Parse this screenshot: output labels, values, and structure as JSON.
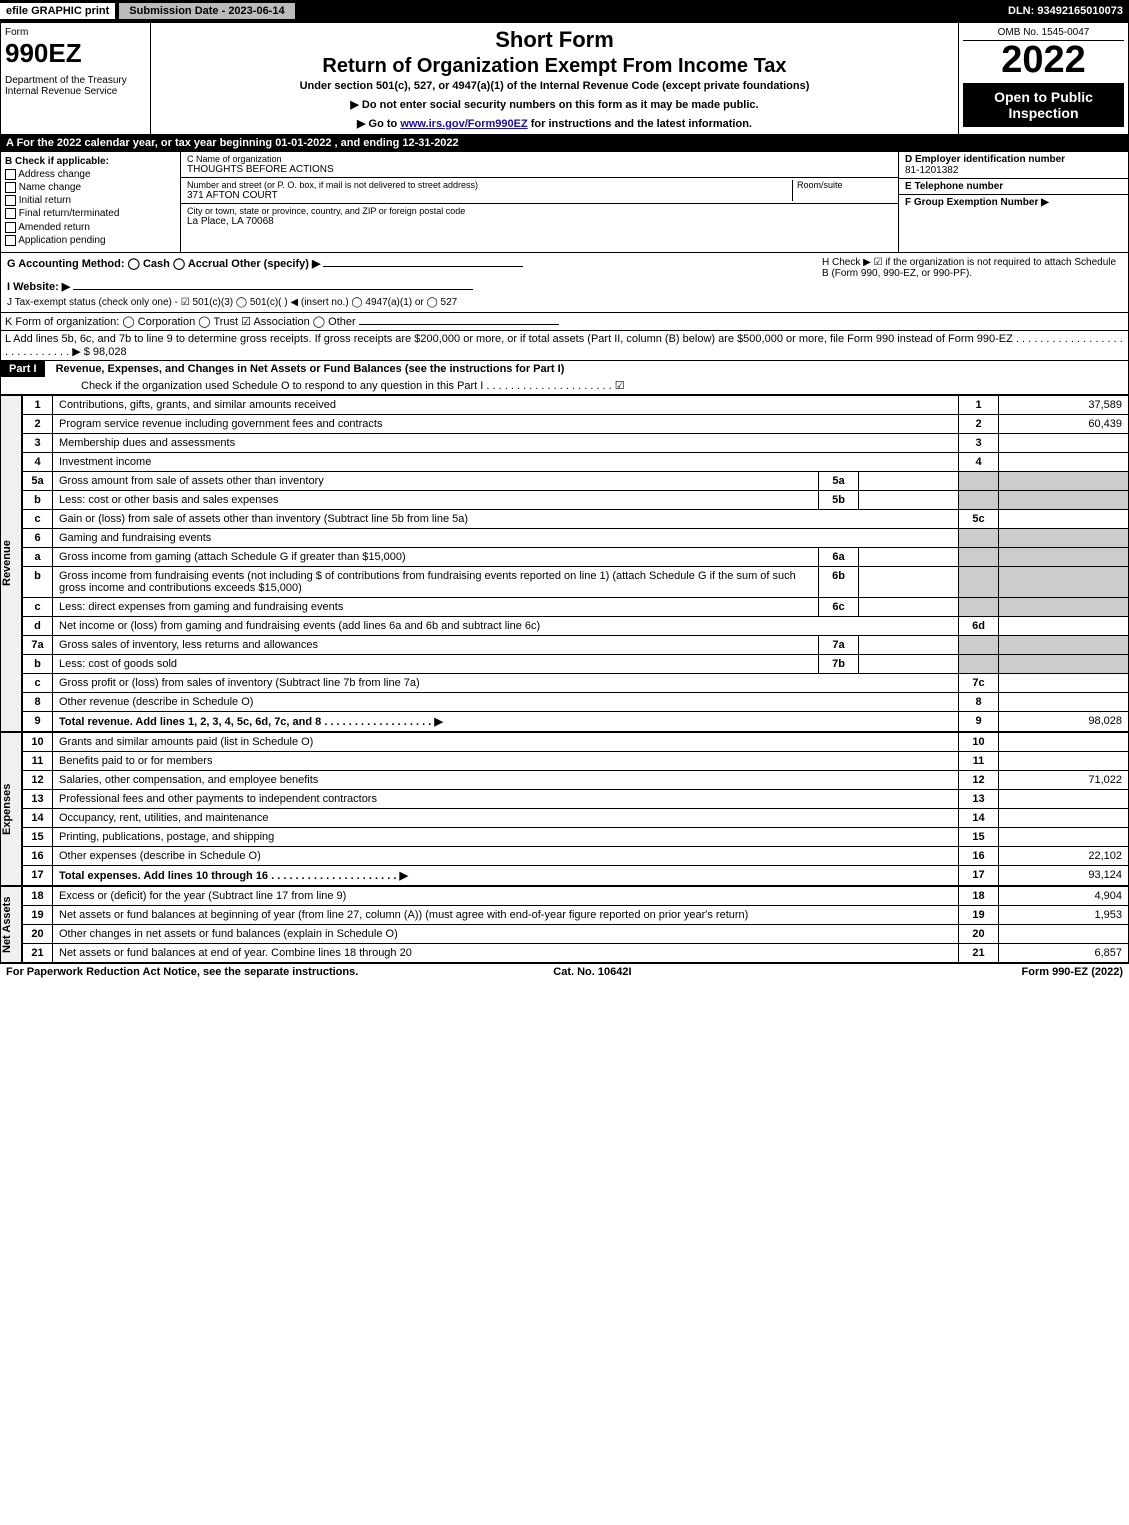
{
  "topbar": {
    "efile": "efile GRAPHIC print",
    "submission": "Submission Date - 2023-06-14",
    "dln": "DLN: 93492165010073"
  },
  "header": {
    "form_label": "Form",
    "form_no": "990EZ",
    "dept": "Department of the Treasury\nInternal Revenue Service",
    "short": "Short Form",
    "title": "Return of Organization Exempt From Income Tax",
    "subtitle": "Under section 501(c), 527, or 4947(a)(1) of the Internal Revenue Code (except private foundations)",
    "note1": "▶ Do not enter social security numbers on this form as it may be made public.",
    "note2_pre": "▶ Go to ",
    "note2_link": "www.irs.gov/Form990EZ",
    "note2_post": " for instructions and the latest information.",
    "omb": "OMB No. 1545-0047",
    "year": "2022",
    "open": "Open to Public Inspection"
  },
  "rowA": "A  For the 2022 calendar year, or tax year beginning 01-01-2022 , and ending 12-31-2022",
  "colB": {
    "title": "B  Check if applicable:",
    "opts": [
      "Address change",
      "Name change",
      "Initial return",
      "Final return/terminated",
      "Amended return",
      "Application pending"
    ]
  },
  "colC": {
    "name_lbl": "C Name of organization",
    "name": "THOUGHTS BEFORE ACTIONS",
    "addr_lbl": "Number and street (or P. O. box, if mail is not delivered to street address)",
    "room_lbl": "Room/suite",
    "addr": "371 AFTON COURT",
    "city_lbl": "City or town, state or province, country, and ZIP or foreign postal code",
    "city": "La Place, LA  70068"
  },
  "colD": {
    "ein_lbl": "D Employer identification number",
    "ein": "81-1201382",
    "tel_lbl": "E Telephone number",
    "tel": "",
    "group_lbl": "F Group Exemption Number   ▶",
    "group": ""
  },
  "rowG": {
    "acct": "G Accounting Method:   ◯ Cash   ◯ Accrual   Other (specify) ▶",
    "website": "I Website: ▶",
    "j": "J Tax-exempt status (check only one) - ☑ 501(c)(3) ◯ 501(c)(  ) ◀ (insert no.) ◯ 4947(a)(1) or ◯ 527",
    "h": "H  Check ▶ ☑ if the organization is not required to attach Schedule B (Form 990, 990-EZ, or 990-PF)."
  },
  "rowK": "K Form of organization:   ◯ Corporation   ◯ Trust   ☑ Association   ◯ Other",
  "rowL": "L Add lines 5b, 6c, and 7b to line 9 to determine gross receipts. If gross receipts are $200,000 or more, or if total assets (Part II, column (B) below) are $500,000 or more, file Form 990 instead of Form 990-EZ . . . . . . . . . . . . . . . . . . . . . . . . . . . . . ▶ $ 98,028",
  "part1": {
    "label": "Part I",
    "title": "Revenue, Expenses, and Changes in Net Assets or Fund Balances (see the instructions for Part I)",
    "check": "Check if the organization used Schedule O to respond to any question in this Part I . . . . . . . . . . . . . . . . . . . . . ☑"
  },
  "sections": {
    "revenue": "Revenue",
    "expenses": "Expenses",
    "netassets": "Net Assets"
  },
  "lines": [
    {
      "n": "1",
      "d": "Contributions, gifts, grants, and similar amounts received",
      "ln": "1",
      "amt": "37,589"
    },
    {
      "n": "2",
      "d": "Program service revenue including government fees and contracts",
      "ln": "2",
      "amt": "60,439"
    },
    {
      "n": "3",
      "d": "Membership dues and assessments",
      "ln": "3",
      "amt": ""
    },
    {
      "n": "4",
      "d": "Investment income",
      "ln": "4",
      "amt": ""
    },
    {
      "n": "5a",
      "d": "Gross amount from sale of assets other than inventory",
      "sub": "5a",
      "subv": ""
    },
    {
      "n": "b",
      "d": "Less: cost or other basis and sales expenses",
      "sub": "5b",
      "subv": ""
    },
    {
      "n": "c",
      "d": "Gain or (loss) from sale of assets other than inventory (Subtract line 5b from line 5a)",
      "ln": "5c",
      "amt": ""
    },
    {
      "n": "6",
      "d": "Gaming and fundraising events"
    },
    {
      "n": "a",
      "d": "Gross income from gaming (attach Schedule G if greater than $15,000)",
      "sub": "6a",
      "subv": ""
    },
    {
      "n": "b",
      "d": "Gross income from fundraising events (not including $                    of contributions from fundraising events reported on line 1) (attach Schedule G if the sum of such gross income and contributions exceeds $15,000)",
      "sub": "6b",
      "subv": ""
    },
    {
      "n": "c",
      "d": "Less: direct expenses from gaming and fundraising events",
      "sub": "6c",
      "subv": ""
    },
    {
      "n": "d",
      "d": "Net income or (loss) from gaming and fundraising events (add lines 6a and 6b and subtract line 6c)",
      "ln": "6d",
      "amt": ""
    },
    {
      "n": "7a",
      "d": "Gross sales of inventory, less returns and allowances",
      "sub": "7a",
      "subv": ""
    },
    {
      "n": "b",
      "d": "Less: cost of goods sold",
      "sub": "7b",
      "subv": ""
    },
    {
      "n": "c",
      "d": "Gross profit or (loss) from sales of inventory (Subtract line 7b from line 7a)",
      "ln": "7c",
      "amt": ""
    },
    {
      "n": "8",
      "d": "Other revenue (describe in Schedule O)",
      "ln": "8",
      "amt": ""
    },
    {
      "n": "9",
      "d": "Total revenue. Add lines 1, 2, 3, 4, 5c, 6d, 7c, and 8   . . . . . . . . . . . . . . . . . . ▶",
      "ln": "9",
      "amt": "98,028",
      "bold": true
    }
  ],
  "expenses": [
    {
      "n": "10",
      "d": "Grants and similar amounts paid (list in Schedule O)",
      "ln": "10",
      "amt": ""
    },
    {
      "n": "11",
      "d": "Benefits paid to or for members",
      "ln": "11",
      "amt": ""
    },
    {
      "n": "12",
      "d": "Salaries, other compensation, and employee benefits",
      "ln": "12",
      "amt": "71,022"
    },
    {
      "n": "13",
      "d": "Professional fees and other payments to independent contractors",
      "ln": "13",
      "amt": ""
    },
    {
      "n": "14",
      "d": "Occupancy, rent, utilities, and maintenance",
      "ln": "14",
      "amt": ""
    },
    {
      "n": "15",
      "d": "Printing, publications, postage, and shipping",
      "ln": "15",
      "amt": ""
    },
    {
      "n": "16",
      "d": "Other expenses (describe in Schedule O)",
      "ln": "16",
      "amt": "22,102"
    },
    {
      "n": "17",
      "d": "Total expenses. Add lines 10 through 16    . . . . . . . . . . . . . . . . . . . . . ▶",
      "ln": "17",
      "amt": "93,124",
      "bold": true
    }
  ],
  "netassets": [
    {
      "n": "18",
      "d": "Excess or (deficit) for the year (Subtract line 17 from line 9)",
      "ln": "18",
      "amt": "4,904"
    },
    {
      "n": "19",
      "d": "Net assets or fund balances at beginning of year (from line 27, column (A)) (must agree with end-of-year figure reported on prior year's return)",
      "ln": "19",
      "amt": "1,953"
    },
    {
      "n": "20",
      "d": "Other changes in net assets or fund balances (explain in Schedule O)",
      "ln": "20",
      "amt": ""
    },
    {
      "n": "21",
      "d": "Net assets or fund balances at end of year. Combine lines 18 through 20",
      "ln": "21",
      "amt": "6,857"
    }
  ],
  "footer": {
    "left": "For Paperwork Reduction Act Notice, see the separate instructions.",
    "mid": "Cat. No. 10642I",
    "right": "Form 990-EZ (2022)"
  }
}
